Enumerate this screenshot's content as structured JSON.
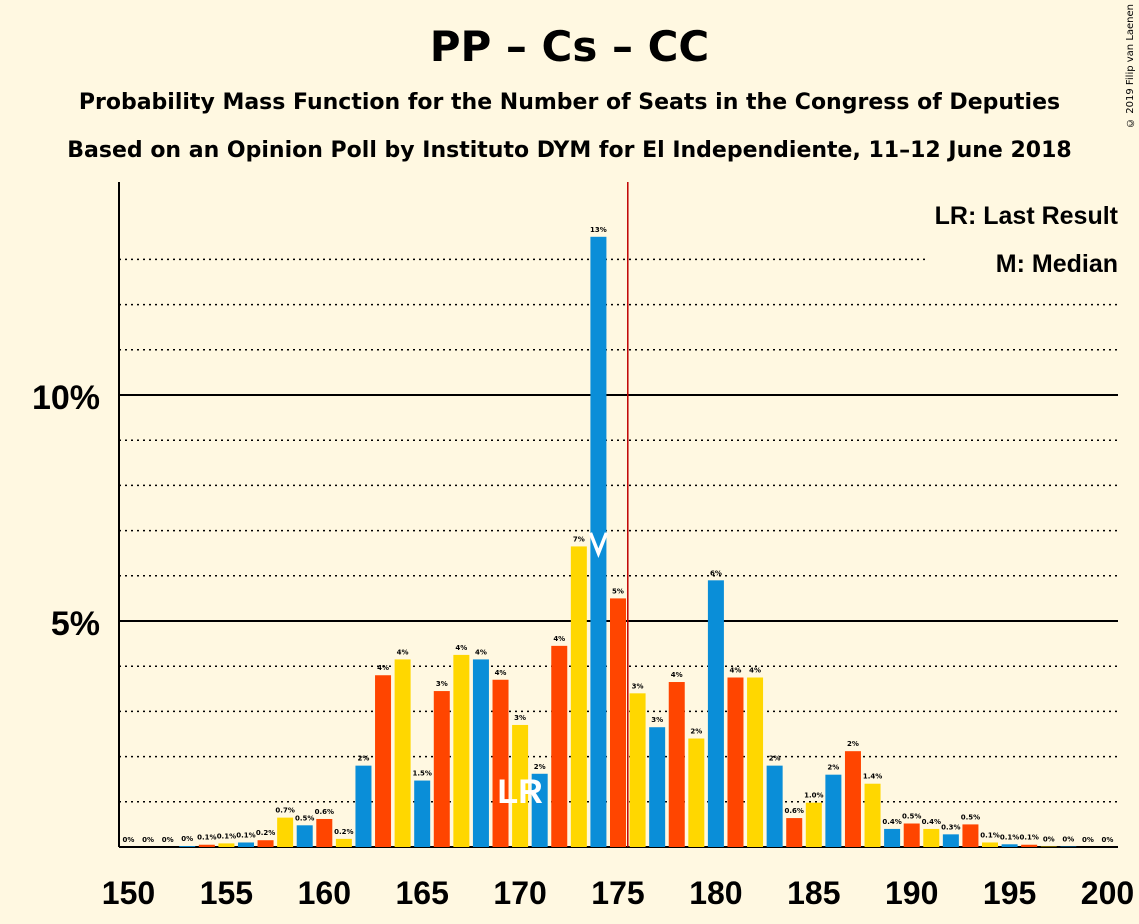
{
  "title": "PP – Cs – CC",
  "subtitle": "Probability Mass Function for the Number of Seats in the Congress of Deputies",
  "subtitle2": "Based on an Opinion Poll by Instituto DYM for El Independiente, 11–12 June 2018",
  "credit": "© 2019 Filip van Laenen",
  "legend": {
    "last_result": "LR: Last Result",
    "median": "M: Median"
  },
  "markers": {
    "last_result_label": "LR",
    "last_result_seat": 170,
    "median_seat": 174,
    "majority_seat": 176
  },
  "colors": {
    "blue": "#0A8ED8",
    "orange": "#FF4500",
    "yellow": "#FFD700",
    "majority_line": "#C00000",
    "background": "#FFF8E1"
  },
  "chart_data": {
    "type": "bar",
    "x_ticks": [
      "150",
      "155",
      "160",
      "165",
      "170",
      "175",
      "180",
      "185",
      "190",
      "195",
      "200"
    ],
    "y_ticks": [
      "5%",
      "10%"
    ],
    "xlim": [
      150,
      200
    ],
    "ylim": [
      0,
      14.5
    ],
    "grid": "dotted every 1%, solid at 5% and 10%",
    "seats": [
      150,
      151,
      152,
      153,
      154,
      155,
      156,
      157,
      158,
      159,
      160,
      161,
      162,
      163,
      164,
      165,
      166,
      167,
      168,
      169,
      170,
      171,
      172,
      173,
      174,
      175,
      176,
      177,
      178,
      179,
      180,
      181,
      182,
      183,
      184,
      185,
      186,
      187,
      188,
      189,
      190,
      191,
      192,
      193,
      194,
      195,
      196,
      197,
      198,
      199,
      200
    ],
    "values": [
      0,
      0,
      0,
      0.02,
      0.05,
      0.08,
      0.1,
      0.15,
      0.65,
      0.48,
      0.62,
      0.18,
      1.8,
      3.8,
      4.15,
      1.47,
      3.45,
      4.25,
      4.15,
      3.7,
      2.7,
      1.62,
      4.45,
      6.65,
      13.5,
      5.5,
      3.4,
      2.65,
      3.65,
      2.4,
      5.9,
      3.75,
      3.75,
      1.8,
      0.64,
      0.98,
      1.6,
      2.12,
      1.4,
      0.4,
      0.52,
      0.4,
      0.28,
      0.5,
      0.1,
      0.06,
      0.05,
      0.01,
      0.01,
      0,
      0
    ],
    "labels": [
      "0%",
      "0%",
      "0%",
      "0%",
      "0.1%",
      "0.1%",
      "0.1%",
      "0.2%",
      "0.7%",
      "0.5%",
      "0.6%",
      "0.2%",
      "2%",
      "4%",
      "4%",
      "1.5%",
      "3%",
      "4%",
      "4%",
      "4%",
      "3%",
      "2%",
      "4%",
      "7%",
      "13%",
      "5%",
      "3%",
      "3%",
      "4%",
      "2%",
      "6%",
      "4%",
      "4%",
      "2%",
      "0.6%",
      "1.0%",
      "2%",
      "2%",
      "1.4%",
      "0.4%",
      "0.5%",
      "0.4%",
      "0.3%",
      "0.5%",
      "0.1%",
      "0.1%",
      "0.1%",
      "0%",
      "0%",
      "0%",
      "0%"
    ]
  }
}
